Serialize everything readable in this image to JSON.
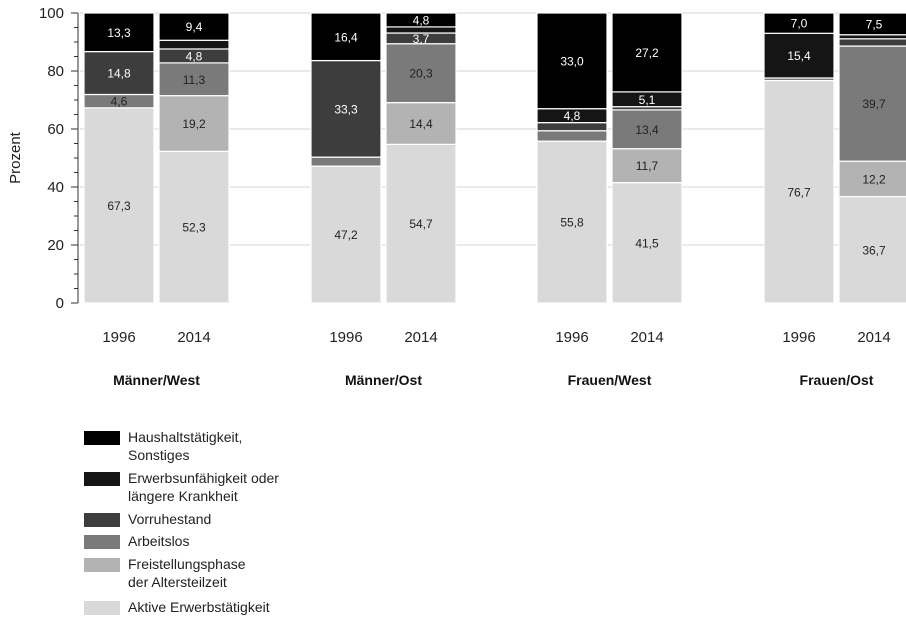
{
  "chart_data": {
    "type": "bar",
    "stacked": true,
    "ylabel": "Prozent",
    "ylim": [
      0,
      100
    ],
    "yticks": [
      0,
      20,
      40,
      60,
      80,
      100
    ],
    "grid": true,
    "legend_position": "bottom-left",
    "groups": [
      {
        "label": "Männer/West",
        "bars": [
          {
            "label": "1996",
            "values": [
              67.3,
              0,
              4.6,
              14.8,
              0,
              13.3
            ]
          },
          {
            "label": "2014",
            "values": [
              52.3,
              19.2,
              11.3,
              4.8,
              3.0,
              9.4
            ]
          }
        ]
      },
      {
        "label": "Männer/Ost",
        "bars": [
          {
            "label": "1996",
            "values": [
              47.2,
              0,
              3.1,
              33.3,
              0,
              16.4
            ]
          },
          {
            "label": "2014",
            "values": [
              54.7,
              14.4,
              20.3,
              3.7,
              2.1,
              4.8
            ]
          }
        ]
      },
      {
        "label": "Frauen/West",
        "bars": [
          {
            "label": "1996",
            "values": [
              55.8,
              0,
              3.6,
              2.8,
              4.8,
              33.0
            ]
          },
          {
            "label": "2014",
            "values": [
              41.5,
              11.7,
              13.4,
              1.1,
              5.1,
              27.2
            ]
          }
        ]
      },
      {
        "label": "Frauen/Ost",
        "bars": [
          {
            "label": "1996",
            "values": [
              76.7,
              0,
              0.9,
              0,
              15.4,
              7.0
            ]
          },
          {
            "label": "2014",
            "values": [
              36.7,
              12.2,
              39.7,
              2.5,
              1.4,
              7.5
            ]
          }
        ]
      }
    ],
    "series": [
      {
        "name": "Aktive Erwerbstätigkeit",
        "color": "#d9d9d9"
      },
      {
        "name": "Freistellungsphase\nder Altersteilzeit",
        "color": "#b3b3b3"
      },
      {
        "name": "Arbeitslos",
        "color": "#7a7a7a"
      },
      {
        "name": "Vorruhestand",
        "color": "#3d3d3d"
      },
      {
        "name": "Erwerbsunfähigkeit oder\nlängere Krankheit",
        "color": "#151515"
      },
      {
        "name": "Haushaltstätigkeit,\nSonstiges",
        "color": "#000000"
      }
    ],
    "data_labels": {
      "Männer/West|1996": [
        "67,3",
        "",
        "4,6",
        "14,8",
        "",
        "13,3"
      ],
      "Männer/West|2014": [
        "52,3",
        "19,2",
        "11,3",
        "4,8",
        "",
        "9,4"
      ],
      "Männer/Ost|1996": [
        "47,2",
        "",
        "",
        "33,3",
        "",
        "16,4"
      ],
      "Männer/Ost|2014": [
        "54,7",
        "14,4",
        "20,3",
        "3,7",
        "",
        "4,8"
      ],
      "Frauen/West|1996": [
        "55,8",
        "",
        "",
        "",
        "4,8",
        "33,0"
      ],
      "Frauen/West|2014": [
        "41,5",
        "11,7",
        "13,4",
        "",
        "5,1",
        "27,2"
      ],
      "Frauen/Ost|1996": [
        "76,7",
        "",
        "",
        "",
        "15,4",
        "7,0"
      ],
      "Frauen/Ost|2014": [
        "36,7",
        "12,2",
        "39,7",
        "",
        "",
        "7,5"
      ]
    }
  }
}
